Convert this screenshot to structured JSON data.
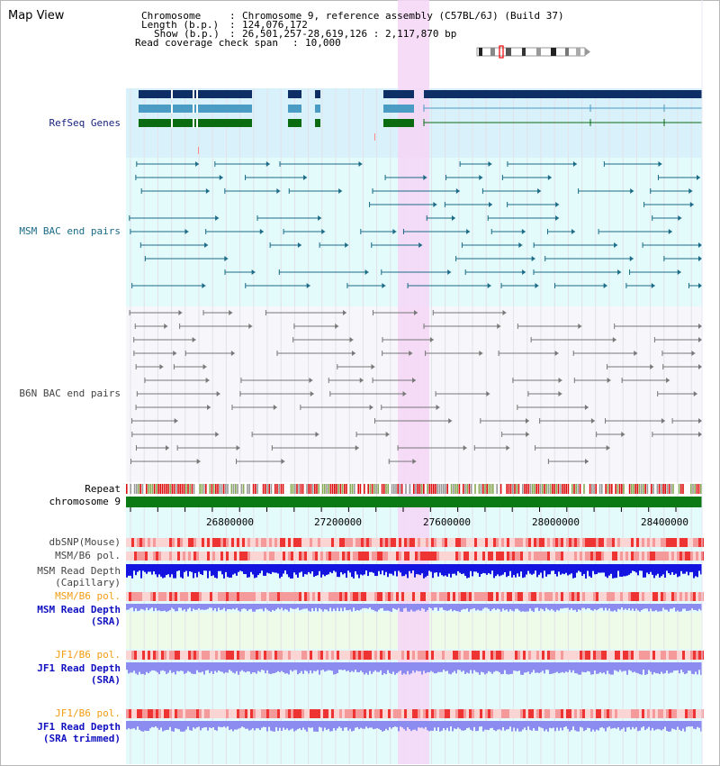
{
  "app": {
    "title": "Map View"
  },
  "info": {
    "chromosome_key": "Chromosome",
    "chromosome_value": "Chromosome 9, reference assembly (C57BL/6J) (Build 37)",
    "length_key": "Length (b.p.)",
    "length_value": "124,076,172",
    "show_key": "Show (b.p.)",
    "show_value": "26,501,257-28,619,126 : 2,117,870 bp",
    "coverage_key": "Read coverage check span",
    "coverage_value": "10,000"
  },
  "tracks": {
    "refseq": "RefSeq Genes",
    "msm_bac": "MSM BAC end pairs",
    "b6n_bac": "B6N BAC end pairs",
    "repeat": "Repeat",
    "chromosome": "chromosome 9",
    "dbsnp": "dbSNP(Mouse)",
    "msm_b6_pol": "MSM/B6 pol.",
    "msm_depth_cap_1": "MSM Read Depth",
    "msm_depth_cap_2": "(Capillary)",
    "msm_b6_pol_sra": "MSM/B6 pol.",
    "msm_depth_sra_1": "MSM Read Depth",
    "msm_depth_sra_2": "(SRA)",
    "jf1_b6_pol": "JF1/B6 pol.",
    "jf1_depth_1": "JF1 Read Depth",
    "jf1_depth_2": "(SRA)",
    "jf1_b6_pol_2": "JF1/B6 pol.",
    "jf1_trim_1": "JF1 Read Depth",
    "jf1_trim_2": "(SRA trimmed)"
  },
  "axis": {
    "ticks": [
      "26800000",
      "27200000",
      "27600000",
      "28000000",
      "28400000"
    ]
  },
  "colors": {
    "refseq_bg": "#d9f1fb",
    "msm_bg": "#e3fbfb",
    "b6n_bg": "#f7f7fb",
    "highlight": "#f6d6f6",
    "gene_navy": "#0d2f66",
    "gene_blue": "#4a9cc4",
    "gene_green": "#0b6b10",
    "msm_line": "#1b6b87",
    "b6n_line": "#777777",
    "chrom_green": "#0c7a14",
    "depth_blue": "#1414e0",
    "depth_light": "#8c8cf0"
  }
}
